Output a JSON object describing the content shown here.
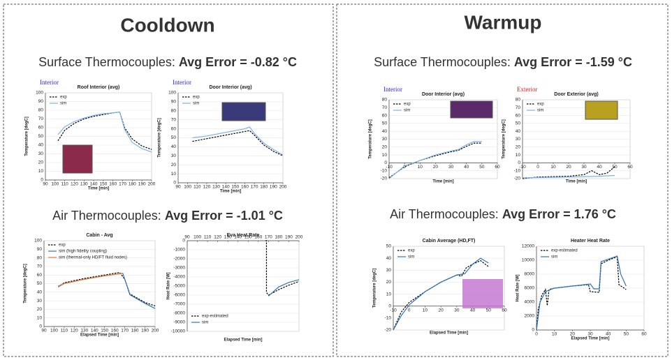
{
  "slide": {
    "left": {
      "title": "Cooldown",
      "surface_label": "Surface Thermocouples:",
      "surface_error": "Avg Error = -0.82 °C",
      "air_label": "Air Thermocouples:",
      "air_error": "Avg Error = -1.01 °C"
    },
    "right": {
      "title": "Warmup",
      "surface_label": "Surface Thermocouples:",
      "surface_error": "Avg Error = -1.59 °C",
      "air_label": "Air Thermocouples:",
      "air_error": "Avg Error = 1.76 °C"
    }
  },
  "chart_data": [
    {
      "type": "line",
      "title": "Roof Interior (avg)",
      "annotation": "Interior",
      "annotation_color": "#2a2ae0",
      "xlabel": "Time [min]",
      "ylabel": "Temperature [degC]",
      "xlim": [
        90,
        200
      ],
      "xticks": [
        90,
        100,
        110,
        120,
        130,
        140,
        150,
        160,
        170,
        180,
        190,
        200
      ],
      "ylim": [
        0,
        100
      ],
      "yticks": [
        0,
        10,
        20,
        30,
        40,
        50,
        60,
        70,
        80,
        90,
        100
      ],
      "x_axis_position": "bottom",
      "legend": "upper left",
      "series": [
        {
          "name": "exp",
          "color": "#000000",
          "dashed": true,
          "x": [
            103,
            110,
            120,
            130,
            140,
            150,
            160,
            167,
            172,
            180,
            190,
            200
          ],
          "values": [
            45,
            57,
            65,
            70,
            73,
            75,
            77,
            78,
            60,
            47,
            39,
            35
          ]
        },
        {
          "name": "sim",
          "color": "#7fb2e5",
          "dashed": false,
          "x": [
            103,
            110,
            120,
            130,
            140,
            150,
            160,
            167,
            172,
            180,
            190,
            200
          ],
          "values": [
            52,
            61,
            67,
            71,
            74,
            76,
            77,
            78,
            58,
            43,
            36,
            32
          ]
        }
      ]
    },
    {
      "type": "line",
      "title": "Door Interior (avg)",
      "annotation": "Interior",
      "annotation_color": "#2a2ae0",
      "xlabel": "Time [min]",
      "ylabel": "Temperature [degC]",
      "xlim": [
        90,
        200
      ],
      "xticks": [
        90,
        100,
        110,
        120,
        130,
        140,
        150,
        160,
        170,
        180,
        190,
        200
      ],
      "ylim": [
        0,
        100
      ],
      "yticks": [
        0,
        10,
        20,
        30,
        40,
        50,
        60,
        70,
        80,
        90,
        100
      ],
      "x_axis_position": "bottom",
      "legend": "upper left",
      "series": [
        {
          "name": "exp",
          "color": "#000000",
          "dashed": true,
          "x": [
            105,
            120,
            140,
            165,
            170,
            180,
            190,
            200
          ],
          "values": [
            46,
            49,
            53,
            58,
            53,
            42,
            35,
            30
          ]
        },
        {
          "name": "sim",
          "color": "#7fb2e5",
          "dashed": false,
          "x": [
            105,
            120,
            140,
            160,
            165,
            170,
            180,
            190,
            200
          ],
          "values": [
            50,
            52,
            56,
            60,
            62,
            55,
            44,
            37,
            31
          ]
        }
      ]
    },
    {
      "type": "line",
      "title": "Cabin - Avg",
      "xlabel": "Elapsed Time [min]",
      "ylabel": "Temperature [degC]",
      "xlim": [
        90,
        200
      ],
      "xticks": [
        90,
        100,
        110,
        120,
        130,
        140,
        150,
        160,
        170,
        180,
        190,
        200
      ],
      "ylim": [
        0,
        100
      ],
      "yticks": [
        0,
        10,
        20,
        30,
        40,
        50,
        60,
        70,
        80,
        90,
        100
      ],
      "x_axis_position": "bottom",
      "legend": "upper left",
      "series": [
        {
          "name": "exp",
          "color": "#000000",
          "dashed": true,
          "x": [
            104,
            110,
            130,
            150,
            165,
            170,
            175,
            190,
            200
          ],
          "values": [
            46,
            51,
            56,
            60,
            63,
            55,
            38,
            28,
            24
          ]
        },
        {
          "name": "sim (high fidelity coupling)",
          "color": "#2e75b6",
          "dashed": false,
          "x": [
            104,
            110,
            130,
            150,
            168,
            172,
            175,
            190,
            200
          ],
          "values": [
            47,
            50,
            55,
            59,
            62,
            48,
            37,
            27,
            21
          ]
        },
        {
          "name": "sim (thermal-only HD/FT fluid nodes)",
          "color": "#ed7d31",
          "dashed": false,
          "x": [
            104,
            110,
            130,
            150,
            168
          ],
          "values": [
            46,
            50,
            55,
            59,
            62
          ]
        }
      ]
    },
    {
      "type": "line",
      "title": "Eva Heat Rate",
      "xlabel": "Elapsed Time [min]",
      "ylabel": "Heat Rate [W]",
      "xlim": [
        90,
        200
      ],
      "xticks": [
        90,
        100,
        110,
        120,
        130,
        140,
        150,
        160,
        170,
        180,
        190,
        200
      ],
      "ylim": [
        -10000,
        0
      ],
      "yticks": [
        -10000,
        -9000,
        -8000,
        -7000,
        -6000,
        -5000,
        -4000,
        -3000,
        -2000,
        -1000,
        0
      ],
      "x_axis_position": "top",
      "legend": "lower left",
      "series": [
        {
          "name": "exp-estimated",
          "color": "#000000",
          "dashed": true,
          "x": [
            167,
            168,
            168,
            170,
            180,
            190,
            200
          ],
          "values": [
            0,
            0,
            -5700,
            -6000,
            -5400,
            -4900,
            -4500
          ]
        },
        {
          "name": "sim",
          "color": "#2e75b6",
          "dashed": false,
          "x": [
            170,
            180,
            190,
            200
          ],
          "values": [
            -6100,
            -5100,
            -4600,
            -4300
          ]
        }
      ]
    },
    {
      "type": "line",
      "title": "Door Interior (avg)",
      "annotation": "Interior",
      "annotation_color": "#2a2ae0",
      "xlabel": "Time [min]",
      "ylabel": "Temperature [degC]",
      "xlim": [
        -10,
        60
      ],
      "xticks": [
        -10,
        0,
        10,
        20,
        30,
        40,
        50,
        60
      ],
      "ylim": [
        -20,
        80
      ],
      "yticks": [
        -20,
        -10,
        0,
        10,
        20,
        30,
        40,
        50,
        60,
        70,
        80
      ],
      "x_axis_position": "zero",
      "legend": "upper left",
      "series": [
        {
          "name": "exp",
          "color": "#000000",
          "dashed": true,
          "x": [
            -10,
            0,
            10,
            20,
            30,
            35,
            40,
            45,
            50
          ],
          "values": [
            -19,
            -5,
            3,
            9,
            14,
            16,
            21,
            25,
            25
          ]
        },
        {
          "name": "sim",
          "color": "#7fb2e5",
          "dashed": false,
          "x": [
            -10,
            0,
            10,
            20,
            30,
            35,
            40,
            45,
            50
          ],
          "values": [
            -20,
            -4,
            3,
            10,
            15,
            17,
            23,
            27,
            27
          ]
        }
      ]
    },
    {
      "type": "line",
      "title": "Door Exterior (avg)",
      "annotation": "Exterior",
      "annotation_color": "#e02020",
      "xlabel": "Time [min]",
      "ylabel": "Temperature [degC]",
      "xlim": [
        -10,
        60
      ],
      "xticks": [
        -10,
        0,
        10,
        20,
        30,
        40,
        50,
        60
      ],
      "ylim": [
        -20,
        80
      ],
      "yticks": [
        -20,
        -10,
        0,
        10,
        20,
        30,
        40,
        50,
        60,
        70,
        80
      ],
      "x_axis_position": "zero",
      "legend": "upper left",
      "series": [
        {
          "name": "exp",
          "color": "#000000",
          "dashed": true,
          "x": [
            -10,
            0,
            20,
            30,
            35,
            40,
            45,
            50
          ],
          "values": [
            -20,
            -18,
            -17,
            -15,
            -10,
            -15,
            -13,
            -5
          ]
        },
        {
          "name": "sim",
          "color": "#7fb2e5",
          "dashed": false,
          "x": [
            -10,
            20,
            40,
            50
          ],
          "values": [
            -19,
            -18,
            -17,
            -16
          ]
        }
      ]
    },
    {
      "type": "line",
      "title": "Cabin Average (HD,FT)",
      "xlabel": "Elapsed Time [min]",
      "ylabel": "Temperature [degC]",
      "xlim": [
        -10,
        60
      ],
      "xticks": [
        -10,
        0,
        10,
        20,
        30,
        40,
        50,
        60
      ],
      "ylim": [
        -20,
        50
      ],
      "yticks": [
        -20,
        -10,
        0,
        10,
        20,
        30,
        40,
        50
      ],
      "x_axis_position": "zero",
      "legend": "upper left",
      "series": [
        {
          "name": "exp",
          "color": "#000000",
          "dashed": true,
          "x": [
            -10,
            -5,
            0,
            10,
            20,
            30,
            33,
            36,
            40,
            45,
            50
          ],
          "values": [
            -20,
            -5,
            3,
            12,
            20,
            26,
            25,
            32,
            35,
            38,
            33
          ]
        },
        {
          "name": "sim",
          "color": "#2e75b6",
          "dashed": false,
          "x": [
            -10,
            -5,
            0,
            10,
            20,
            30,
            35,
            40,
            45,
            50
          ],
          "values": [
            -20,
            -8,
            1,
            12,
            20,
            26,
            27,
            35,
            40,
            36
          ]
        }
      ]
    },
    {
      "type": "line",
      "title": "Heater Heat Rate",
      "xlabel": "Elapsed Time [min]",
      "ylabel": "Heat Rate [W]",
      "xlim": [
        0,
        60
      ],
      "xticks": [
        0,
        10,
        20,
        30,
        40,
        50,
        60
      ],
      "ylim": [
        0,
        12000
      ],
      "yticks": [
        0,
        2000,
        4000,
        6000,
        8000,
        10000,
        12000
      ],
      "x_axis_position": "bottom",
      "legend": "upper left",
      "series": [
        {
          "name": "exp-estimated",
          "color": "#000000",
          "dashed": true,
          "x": [
            0,
            1,
            3,
            5,
            6,
            7,
            10,
            20,
            29,
            30,
            35,
            36,
            40,
            45,
            46,
            50
          ],
          "values": [
            0,
            3000,
            5000,
            5800,
            3500,
            5800,
            6000,
            6300,
            6500,
            5500,
            5400,
            9500,
            10000,
            10500,
            6500,
            5800
          ]
        },
        {
          "name": "sim",
          "color": "#2e75b6",
          "dashed": false,
          "x": [
            0,
            2,
            5,
            10,
            20,
            30,
            32,
            35,
            36,
            45,
            47,
            50
          ],
          "values": [
            0,
            4000,
            5500,
            6000,
            6300,
            6600,
            5900,
            5900,
            9800,
            10600,
            8000,
            6300
          ]
        }
      ]
    }
  ]
}
